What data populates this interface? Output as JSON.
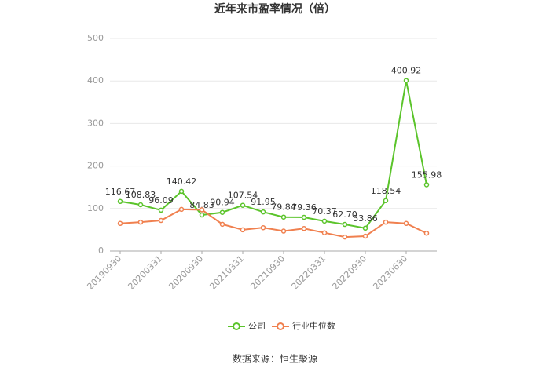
{
  "chart_data": {
    "type": "line",
    "title": "近年来市盈率情况（倍）",
    "categories": [
      "20190930",
      null,
      "20200331",
      null,
      "20200930",
      null,
      "20210331",
      null,
      "20210930",
      null,
      "20220331",
      null,
      "20220930",
      null,
      "20230630",
      null
    ],
    "series": [
      {
        "name": "公司",
        "color": "#5bc42b",
        "values": [
          116.67,
          108.83,
          96.09,
          140.42,
          84.83,
          90.94,
          107.54,
          91.95,
          79.84,
          79.36,
          70.37,
          62.7,
          53.86,
          118.54,
          400.92,
          155.98
        ],
        "value_labels": [
          "116.67",
          "108.83",
          "96.09",
          "140.42",
          "84.83",
          "90.94",
          "107.54",
          "91.95",
          "79.84",
          "79.36",
          "70.37",
          "62.70",
          "53.86",
          "118.54",
          "400.92",
          "155.98"
        ]
      },
      {
        "name": "行业中位数",
        "color": "#f0804f",
        "values": [
          65,
          68,
          72,
          98,
          97,
          63,
          50,
          55,
          47,
          53,
          43,
          33,
          35,
          68,
          65,
          42
        ]
      }
    ],
    "ylim": [
      0,
      500
    ],
    "yticks": [
      0,
      100,
      200,
      300,
      400,
      500
    ],
    "grid": true,
    "source": "数据来源：恒生聚源"
  }
}
